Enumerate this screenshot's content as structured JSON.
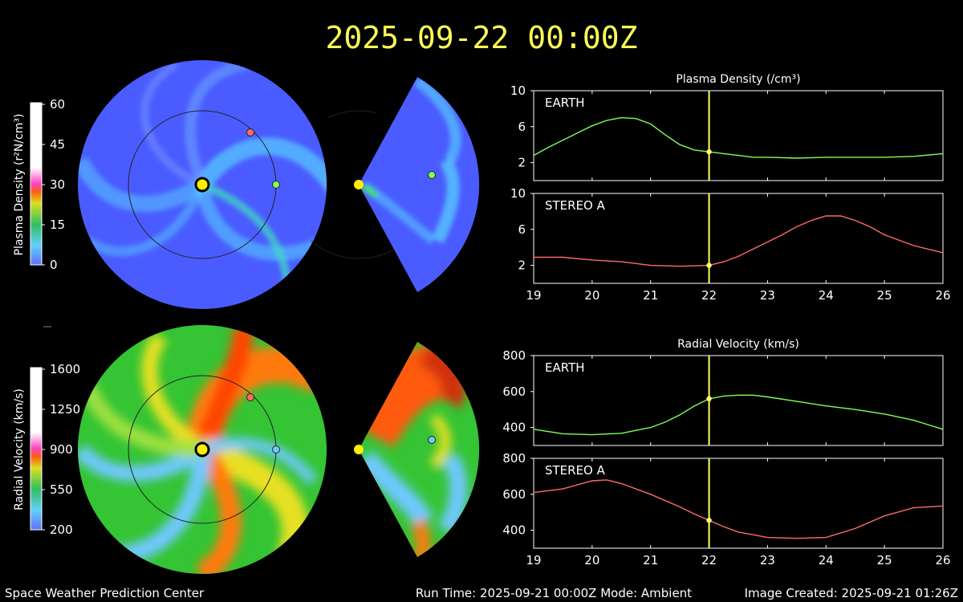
{
  "header": {
    "datetime": "2025-09-22  00:00Z"
  },
  "footer": {
    "left": "Space Weather Prediction Center",
    "run_time": "Run Time: 2025-09-21 00:00Z  Mode: Ambient",
    "created": "Image Created: 2025-09-21 01:26Z"
  },
  "colors": {
    "earth": "#7fff5a",
    "stereo_a": "#ff6a6a",
    "current_time": "#ffff66",
    "title": "#ffff55",
    "density_background": "#4a5cff",
    "density_arm": "#56c6ff",
    "velocity_background": "#34c434",
    "velocity_high": "#ff7a10",
    "velocity_low": "#6fc8ff"
  },
  "density_colorbar": {
    "label": "Plasma Density (r²N/cm³)",
    "ticks": [
      "60",
      "45",
      "30",
      "15",
      "0"
    ]
  },
  "velocity_colorbar": {
    "label": "Radial Velocity (km/s)",
    "ticks": [
      "1600",
      "1250",
      "900",
      "550",
      "200"
    ]
  },
  "chart_data": [
    {
      "type": "line",
      "title": "Plasma Density (/cm³)",
      "x_ticks": [
        "19",
        "20",
        "21",
        "22",
        "23",
        "24",
        "25",
        "26"
      ],
      "xlim": [
        19,
        26
      ],
      "current_x": 22,
      "panels": [
        {
          "label": "EARTH",
          "ylim": [
            0,
            10
          ],
          "y_ticks": [
            "10",
            "6",
            "2"
          ],
          "series": [
            {
              "name": "EARTH",
              "x": [
                19,
                19.25,
                19.5,
                19.75,
                20,
                20.25,
                20.5,
                20.75,
                21,
                21.25,
                21.5,
                21.75,
                22,
                22.25,
                22.5,
                22.75,
                23,
                23.5,
                24,
                24.5,
                25,
                25.5,
                26
              ],
              "values": [
                2.8,
                3.7,
                4.5,
                5.3,
                6.1,
                6.7,
                7.0,
                6.9,
                6.3,
                5.1,
                4.0,
                3.4,
                3.2,
                3.0,
                2.8,
                2.6,
                2.6,
                2.5,
                2.6,
                2.6,
                2.6,
                2.7,
                3.0
              ]
            }
          ]
        },
        {
          "label": "STEREO A",
          "ylim": [
            0,
            10
          ],
          "y_ticks": [
            "10",
            "6",
            "2"
          ],
          "series": [
            {
              "name": "STEREO A",
              "x": [
                19,
                19.5,
                20,
                20.5,
                21,
                21.5,
                22,
                22.25,
                22.5,
                22.75,
                23,
                23.25,
                23.5,
                23.75,
                24,
                24.25,
                24.5,
                24.75,
                25,
                25.5,
                26
              ],
              "values": [
                2.9,
                2.9,
                2.6,
                2.4,
                2.0,
                1.9,
                2.0,
                2.4,
                3.0,
                3.8,
                4.6,
                5.4,
                6.3,
                7.0,
                7.5,
                7.5,
                7.0,
                6.3,
                5.4,
                4.2,
                3.4
              ]
            }
          ]
        }
      ]
    },
    {
      "type": "line",
      "title": "Radial Velocity (km/s)",
      "x_ticks": [
        "19",
        "20",
        "21",
        "22",
        "23",
        "24",
        "25",
        "26"
      ],
      "xlim": [
        19,
        26
      ],
      "current_x": 22,
      "panels": [
        {
          "label": "EARTH",
          "ylim": [
            300,
            800
          ],
          "y_ticks": [
            "800",
            "600",
            "400"
          ],
          "series": [
            {
              "name": "EARTH",
              "x": [
                19,
                19.5,
                20,
                20.5,
                21,
                21.25,
                21.5,
                21.75,
                22,
                22.25,
                22.5,
                22.75,
                23,
                23.5,
                24,
                24.5,
                25,
                25.5,
                26
              ],
              "values": [
                390,
                365,
                360,
                368,
                400,
                430,
                470,
                520,
                560,
                575,
                580,
                580,
                570,
                545,
                520,
                500,
                475,
                440,
                390
              ]
            }
          ]
        },
        {
          "label": "STEREO A",
          "ylim": [
            300,
            800
          ],
          "y_ticks": [
            "800",
            "600",
            "400"
          ],
          "series": [
            {
              "name": "STEREO A",
              "x": [
                19,
                19.5,
                20,
                20.25,
                20.5,
                21,
                21.5,
                21.75,
                22,
                22.25,
                22.5,
                23,
                23.5,
                24,
                24.5,
                25,
                25.5,
                26
              ],
              "values": [
                610,
                630,
                675,
                680,
                660,
                600,
                530,
                490,
                455,
                420,
                390,
                360,
                355,
                360,
                410,
                480,
                525,
                535
              ]
            }
          ]
        }
      ]
    }
  ]
}
